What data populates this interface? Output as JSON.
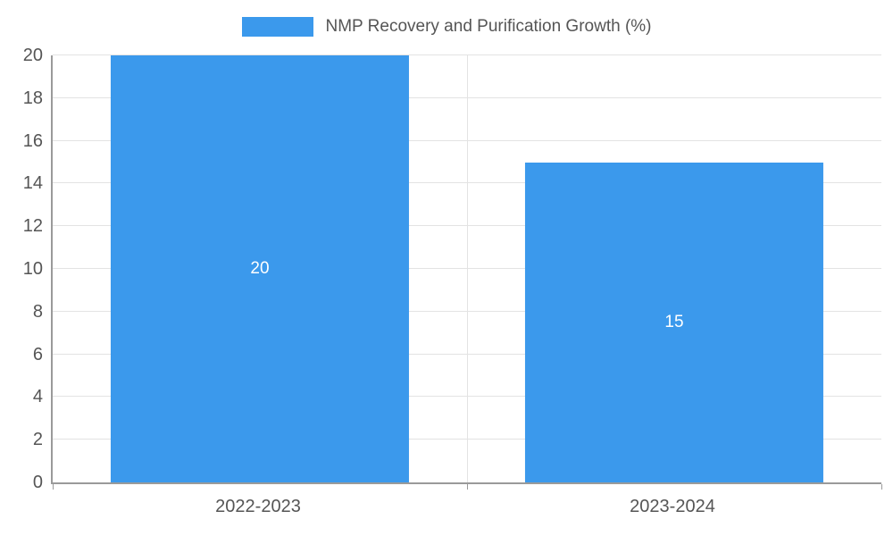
{
  "chart_data": {
    "type": "bar",
    "title": "NMP Recovery and Purification Growth (%)",
    "categories": [
      "2022-2023",
      "2023-2024"
    ],
    "values": [
      20,
      15
    ],
    "value_labels": [
      "20",
      "15"
    ],
    "xlabel": "",
    "ylabel": "",
    "ylim": [
      0,
      20
    ],
    "ytick_step": 2,
    "ytick_labels": [
      "0",
      "2",
      "4",
      "6",
      "8",
      "10",
      "12",
      "14",
      "16",
      "18",
      "20"
    ],
    "grid": true,
    "legend_position": "top-center",
    "bar_color": "#3b99ec",
    "value_label_color": "#ffffff",
    "axis_color": "#9a9a9a",
    "gridline_color": "#e3e3e3",
    "text_color": "#555555",
    "background_color": "#ffffff"
  }
}
